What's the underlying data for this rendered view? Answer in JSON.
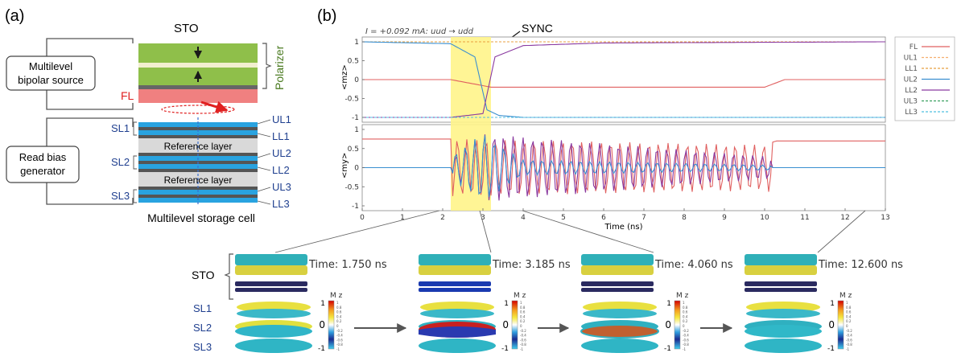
{
  "panel_a": {
    "label": "(a)",
    "sto_label": "STO",
    "polarizer_label": "Polarizer",
    "fl_label": "FL",
    "source_label_1": "Multilevel",
    "source_label_2": "bipolar source",
    "read_label_1": "Read bias",
    "read_label_2": "generator",
    "ref_layer_1": "Reference layer",
    "ref_layer_2": "Reference layer",
    "layers": [
      "UL1",
      "LL1",
      "UL2",
      "LL2",
      "UL3",
      "LL3"
    ],
    "storage_layers": [
      "SL1",
      "SL2",
      "SL3"
    ],
    "cell_caption": "Multilevel storage cell",
    "colors": {
      "polarizer": "#8fbf4a",
      "fl": "#f08080",
      "stripe": "#29a3e0",
      "ref": "#d9d9d9",
      "dark": "#555555",
      "arrow": "#e02020",
      "text_red": "#e02020",
      "text_blue": "#1f3f8f",
      "text_green": "#4a7a20"
    }
  },
  "panel_b": {
    "label": "(b)",
    "plot_title": "I = +0.092 mA: uud → udd",
    "sync_label": "SYNC",
    "top_ylabel": "<mz>",
    "bottom_ylabel": "<my>",
    "xlabel": "Time (ns)",
    "x_ticks": [
      "0",
      "1",
      "2",
      "3",
      "4",
      "5",
      "6",
      "7",
      "8",
      "9",
      "10",
      "11",
      "12",
      "13"
    ],
    "top_y_ticks": [
      "1",
      "0.5",
      "0",
      "-0.5",
      "-1"
    ],
    "bottom_y_ticks": [
      "1",
      "0.5",
      "0",
      "-0.5",
      "-1"
    ],
    "legend": [
      "FL",
      "UL1",
      "LL1",
      "UL2",
      "LL2",
      "UL3",
      "LL3"
    ],
    "legend_colors": [
      "#e06060",
      "#f5b070",
      "#e8a040",
      "#3a8fd0",
      "#8a3aa0",
      "#3aa060",
      "#50c0e0"
    ]
  },
  "chart_data": {
    "type": "line",
    "title": "I = +0.092 mA: uud → udd",
    "xlabel": "Time (ns)",
    "xlim": [
      0,
      13
    ],
    "highlight_x": [
      2.2,
      3.2
    ],
    "top_panel": {
      "ylabel": "<mz>",
      "ylim": [
        -1,
        1
      ],
      "series": [
        {
          "name": "FL",
          "x": [
            0,
            2.2,
            3.2,
            10,
            10.5,
            13
          ],
          "values": [
            0,
            0,
            -0.2,
            -0.2,
            0,
            0
          ]
        },
        {
          "name": "UL1",
          "x": [
            0,
            13
          ],
          "values": [
            1,
            1
          ]
        },
        {
          "name": "LL1",
          "x": [
            0,
            13
          ],
          "values": [
            1,
            1
          ]
        },
        {
          "name": "UL2",
          "x": [
            0,
            2.2,
            2.8,
            3.1,
            3.4,
            4,
            13
          ],
          "values": [
            1,
            0.95,
            0.6,
            -0.8,
            -0.95,
            -1,
            -1
          ]
        },
        {
          "name": "LL2",
          "x": [
            0,
            2.2,
            3.0,
            3.3,
            4,
            6,
            13
          ],
          "values": [
            -1,
            -1,
            -0.9,
            0.6,
            0.9,
            0.97,
            1
          ]
        },
        {
          "name": "UL3",
          "x": [
            0,
            13
          ],
          "values": [
            -1,
            -1
          ]
        },
        {
          "name": "LL3",
          "x": [
            0,
            13
          ],
          "values": [
            -1,
            -1
          ]
        }
      ]
    },
    "bottom_panel": {
      "ylabel": "<my>",
      "ylim": [
        -1,
        1
      ],
      "series": [
        {
          "name": "FL",
          "x": [
            0,
            2.2,
            10,
            10.3,
            13
          ],
          "values": [
            0.75,
            0.75,
            0.6,
            0.7,
            0.7
          ]
        },
        {
          "name": "LL2",
          "x": [
            0,
            2.2,
            3,
            4,
            10,
            13
          ],
          "values": [
            0,
            0.2,
            0.9,
            0.8,
            0.3,
            0
          ]
        },
        {
          "name": "UL2",
          "x": [
            0,
            2.2,
            3,
            4,
            13
          ],
          "values": [
            0,
            0.3,
            0.9,
            0.2,
            0
          ]
        }
      ]
    }
  },
  "bottom_strip": {
    "sto_label": "STO",
    "sl_labels": [
      "SL1",
      "SL2",
      "SL3"
    ],
    "times": [
      "Time: 1.750 ns",
      "Time: 3.185 ns",
      "Time: 4.060 ns",
      "Time: 12.600 ns"
    ],
    "colorbar_title": "M z",
    "colorbar_ticks": [
      "1",
      "0.8",
      "0.6",
      "0.4",
      "0.2",
      "0",
      "-0.2",
      "-0.4",
      "-0.6",
      "-0.8",
      "-1"
    ],
    "colorbar_end_top": "1",
    "colorbar_mid": "0",
    "colorbar_end_bottom": "-1",
    "arrow_icon": "right-arrow-icon"
  }
}
